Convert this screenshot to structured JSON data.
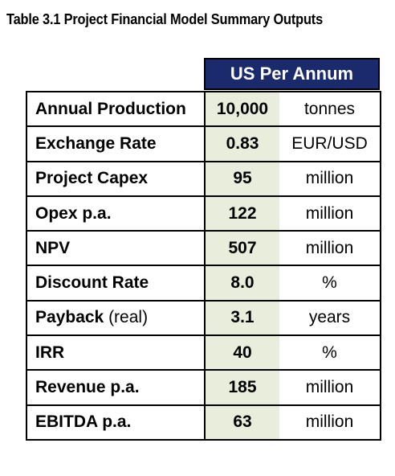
{
  "caption": "Table 3.1 Project Financial Model Summary Outputs",
  "header": "US Per Annum",
  "rows": [
    {
      "label": "Annual Production",
      "suffix": "",
      "value": "10,000",
      "unit": "tonnes"
    },
    {
      "label": "Exchange Rate",
      "suffix": "",
      "value": "0.83",
      "unit": "EUR/USD"
    },
    {
      "label": "Project Capex",
      "suffix": "",
      "value": "95",
      "unit": "million"
    },
    {
      "label": "Opex p.a.",
      "suffix": "",
      "value": "122",
      "unit": "million"
    },
    {
      "label": "NPV",
      "suffix": "",
      "value": "507",
      "unit": "million"
    },
    {
      "label": "Discount Rate",
      "suffix": "",
      "value": "8.0",
      "unit": "%"
    },
    {
      "label": "Payback",
      "suffix": " (real)",
      "value": "3.1",
      "unit": "years"
    },
    {
      "label": "IRR",
      "suffix": "",
      "value": "40",
      "unit": "%"
    },
    {
      "label": "Revenue p.a.",
      "suffix": "",
      "value": "185",
      "unit": "million"
    },
    {
      "label": "EBITDA p.a.",
      "suffix": "",
      "value": "63",
      "unit": "million"
    }
  ],
  "colors": {
    "header_bg": "#1a2a6c",
    "value_bg": "#e8eddc"
  }
}
